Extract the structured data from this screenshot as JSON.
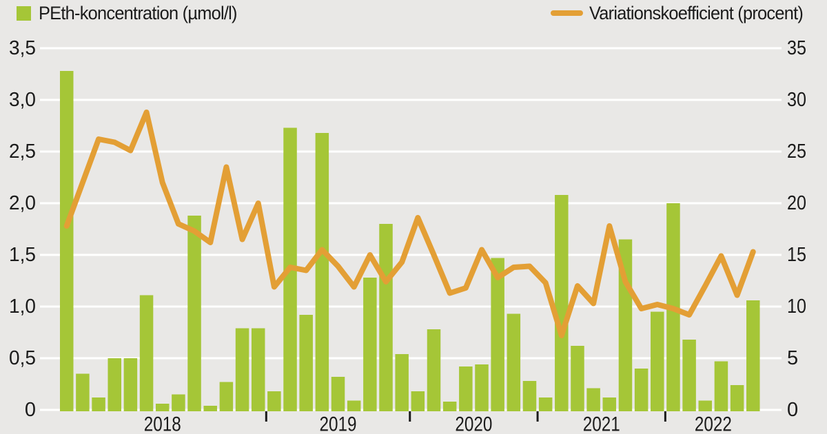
{
  "page": {
    "background": "#e9e8e6",
    "text_color": "#1b1b1b"
  },
  "legend": {
    "bars": {
      "label": "PEth-koncentration (µmol/l)",
      "swatch_color": "#a5c637"
    },
    "line": {
      "label": "Variationskoefficient (procent)",
      "swatch_color": "#e39f35"
    }
  },
  "axes": {
    "left": {
      "tick_labels": [
        "3,5",
        "3,0",
        "2,5",
        "2,0",
        "1,5",
        "1,0",
        "0,5",
        "0"
      ]
    },
    "right": {
      "tick_labels": [
        "35",
        "30",
        "25",
        "20",
        "15",
        "10",
        "5",
        "0"
      ]
    },
    "x": {
      "year_labels": [
        "2018",
        "2019",
        "2020",
        "2021",
        "2022"
      ]
    }
  },
  "chart_data": {
    "type": "bar+line",
    "title": "",
    "grid": true,
    "legend_position": "top",
    "x_axis": {
      "year_labels": [
        "2018",
        "2019",
        "2020",
        "2021",
        "2022"
      ],
      "bars_per_year": [
        13,
        9,
        8,
        8,
        6
      ],
      "ticks_between_years": true
    },
    "left_axis": {
      "title": "PEth-koncentration (µmol/l)",
      "range": [
        0,
        3.5
      ],
      "tick_step": 0.5,
      "tick_labels": [
        "3,5",
        "3,0",
        "2,5",
        "2,0",
        "1,5",
        "1,0",
        "0,5",
        "0"
      ]
    },
    "right_axis": {
      "title": "Variationskoefficient (procent)",
      "range": [
        0,
        35
      ],
      "tick_step": 5,
      "tick_labels": [
        "35",
        "30",
        "25",
        "20",
        "15",
        "10",
        "5",
        "0"
      ]
    },
    "series": [
      {
        "name": "PEth-koncentration (µmol/l)",
        "type": "bar",
        "axis": "left",
        "unit": "µmol/l",
        "color": "#a5c637",
        "values": [
          3.28,
          0.35,
          0.12,
          0.5,
          0.5,
          1.11,
          0.06,
          0.15,
          1.88,
          0.04,
          0.27,
          0.79,
          0.79,
          0.18,
          2.73,
          0.92,
          2.68,
          0.32,
          0.09,
          1.28,
          1.8,
          0.54,
          0.18,
          0.78,
          0.08,
          0.42,
          0.44,
          1.47,
          0.93,
          0.28,
          0.12,
          2.08,
          0.62,
          0.21,
          0.12,
          1.65,
          0.4,
          0.95,
          2.0,
          0.68,
          0.09,
          0.47,
          0.24,
          1.06
        ]
      },
      {
        "name": "Variationskoefficient (procent)",
        "type": "line",
        "axis": "right",
        "unit": "procent",
        "color": "#e39f35",
        "values": [
          17.8,
          22,
          26.2,
          25.9,
          25.1,
          28.8,
          22,
          18,
          17.3,
          16.2,
          23.5,
          16.5,
          20,
          11.9,
          13.8,
          13.5,
          15.5,
          13.9,
          11.9,
          15,
          12.4,
          14.3,
          18.6,
          15,
          11.3,
          11.8,
          15.5,
          12.8,
          13.8,
          13.9,
          12.3,
          7.2,
          12,
          10.3,
          17.8,
          12.4,
          9.8,
          10.2,
          9.8,
          9.2,
          12,
          14.9,
          11.1,
          15.3
        ]
      }
    ]
  }
}
